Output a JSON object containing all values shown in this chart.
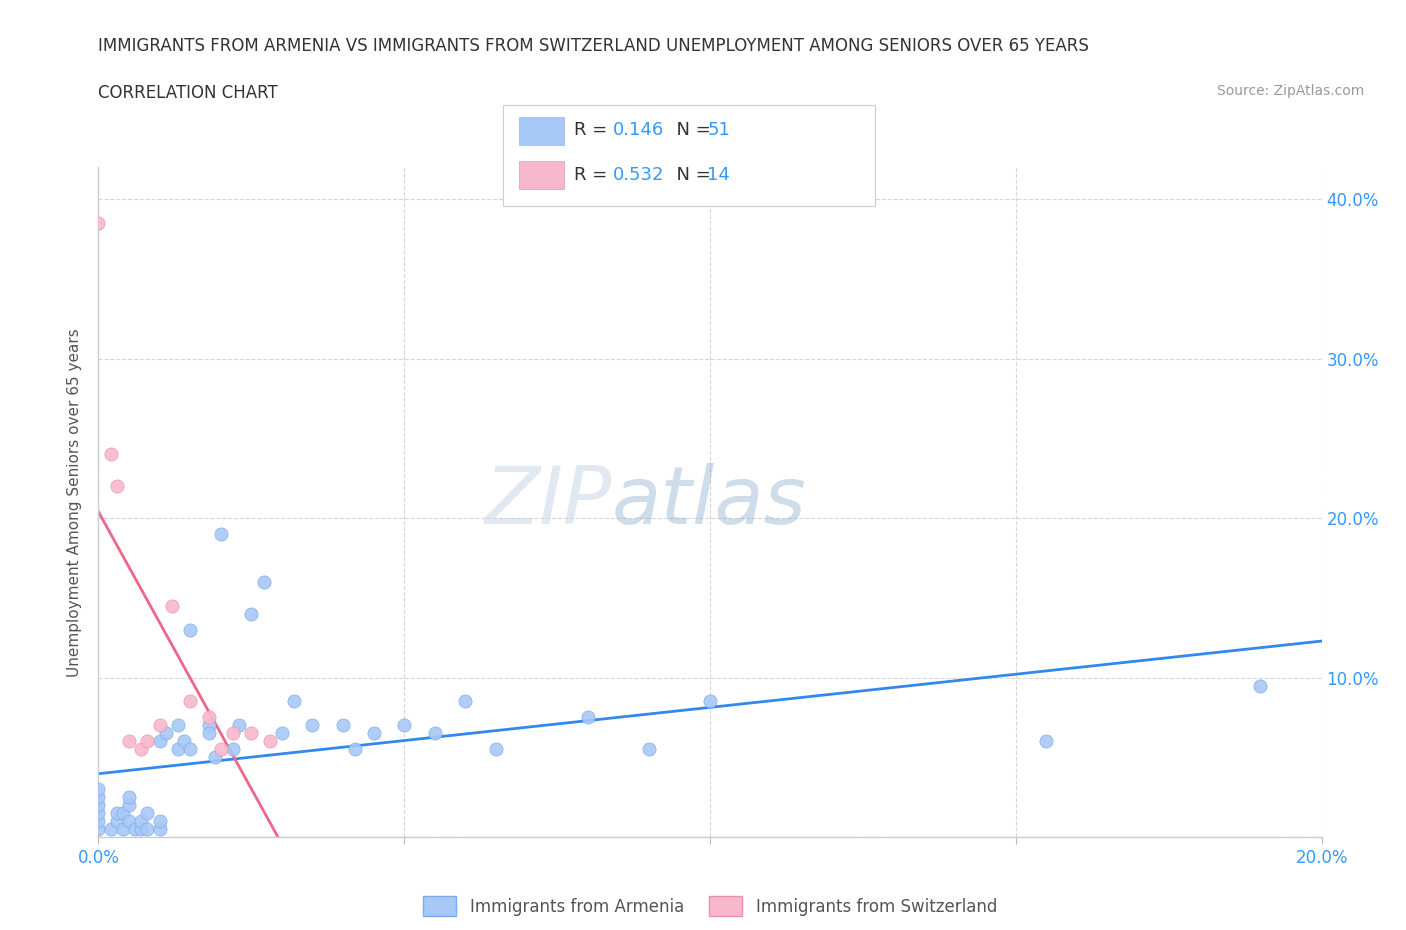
{
  "title_line1": "IMMIGRANTS FROM ARMENIA VS IMMIGRANTS FROM SWITZERLAND UNEMPLOYMENT AMONG SENIORS OVER 65 YEARS",
  "title_line2": "CORRELATION CHART",
  "source_text": "Source: ZipAtlas.com",
  "ylabel": "Unemployment Among Seniors over 65 years",
  "watermark_zip": "ZIP",
  "watermark_atlas": "atlas",
  "xlim": [
    0.0,
    0.2
  ],
  "ylim": [
    0.0,
    0.42
  ],
  "xticks": [
    0.0,
    0.05,
    0.1,
    0.15,
    0.2
  ],
  "yticks": [
    0.0,
    0.1,
    0.2,
    0.3,
    0.4
  ],
  "armenia_color": "#a8c8f8",
  "armenia_edge_color": "#7aaae8",
  "switzerland_color": "#f8b8cc",
  "switzerland_edge_color": "#e890aa",
  "armenia_line_color": "#3388ee",
  "switzerland_line_color": "#ee6688",
  "R_armenia": 0.146,
  "N_armenia": 51,
  "R_switzerland": 0.532,
  "N_switzerland": 14,
  "legend_label_armenia": "Immigrants from Armenia",
  "legend_label_switzerland": "Immigrants from Switzerland",
  "armenia_x": [
    0.0,
    0.0,
    0.0,
    0.0,
    0.0,
    0.0,
    0.002,
    0.003,
    0.003,
    0.004,
    0.004,
    0.005,
    0.005,
    0.005,
    0.006,
    0.007,
    0.007,
    0.008,
    0.008,
    0.01,
    0.01,
    0.01,
    0.011,
    0.013,
    0.013,
    0.014,
    0.015,
    0.015,
    0.018,
    0.018,
    0.019,
    0.02,
    0.022,
    0.023,
    0.025,
    0.027,
    0.03,
    0.032,
    0.035,
    0.04,
    0.042,
    0.045,
    0.05,
    0.055,
    0.06,
    0.065,
    0.08,
    0.09,
    0.1,
    0.155,
    0.19
  ],
  "armenia_y": [
    0.005,
    0.01,
    0.015,
    0.02,
    0.025,
    0.03,
    0.005,
    0.01,
    0.015,
    0.005,
    0.015,
    0.01,
    0.02,
    0.025,
    0.005,
    0.005,
    0.01,
    0.005,
    0.015,
    0.005,
    0.01,
    0.06,
    0.065,
    0.055,
    0.07,
    0.06,
    0.055,
    0.13,
    0.07,
    0.065,
    0.05,
    0.19,
    0.055,
    0.07,
    0.14,
    0.16,
    0.065,
    0.085,
    0.07,
    0.07,
    0.055,
    0.065,
    0.07,
    0.065,
    0.085,
    0.055,
    0.075,
    0.055,
    0.085,
    0.06,
    0.095
  ],
  "switzerland_x": [
    0.0,
    0.002,
    0.003,
    0.005,
    0.007,
    0.008,
    0.01,
    0.012,
    0.015,
    0.018,
    0.02,
    0.022,
    0.025,
    0.028
  ],
  "switzerland_y": [
    0.385,
    0.24,
    0.22,
    0.06,
    0.055,
    0.06,
    0.07,
    0.145,
    0.085,
    0.075,
    0.055,
    0.065,
    0.065,
    0.06
  ]
}
